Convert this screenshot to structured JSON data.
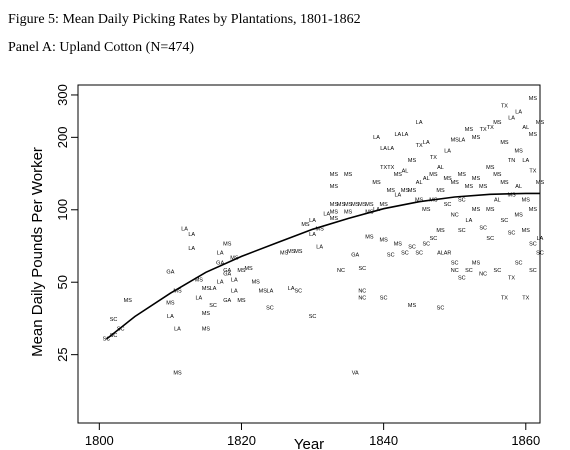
{
  "figure_title": "Figure 5: Mean Daily Picking Rates by Plantations, 1801-1862",
  "panel_title": "Panel A: Upland Cotton (N=474)",
  "chart_data": {
    "type": "scatter",
    "xlabel": "Year",
    "ylabel": "Mean Daily Pounds Per Worker",
    "x_scale": "linear",
    "y_scale": "log",
    "xlim": [
      1797,
      1862
    ],
    "ylim": [
      13,
      330
    ],
    "x_ticks": [
      1800,
      1820,
      1840,
      1860
    ],
    "x_tick_labels": [
      "1800",
      "1820",
      "1840",
      "1860"
    ],
    "y_ticks": [
      25,
      50,
      100,
      200,
      300
    ],
    "y_tick_labels": [
      "25",
      "50",
      "100",
      "200",
      "300"
    ],
    "grid": false,
    "series": [
      {
        "marker": "state label",
        "points": [
          {
            "x": 1801,
            "y": 29,
            "label": "SC"
          },
          {
            "x": 1802,
            "y": 30,
            "label": "SC"
          },
          {
            "x": 1802,
            "y": 35,
            "label": "SC"
          },
          {
            "x": 1803,
            "y": 32,
            "label": "SC"
          },
          {
            "x": 1804,
            "y": 42,
            "label": "MS"
          },
          {
            "x": 1810,
            "y": 55,
            "label": "GA"
          },
          {
            "x": 1810,
            "y": 41,
            "label": "MS"
          },
          {
            "x": 1810,
            "y": 36,
            "label": "LA"
          },
          {
            "x": 1811,
            "y": 46,
            "label": "MS"
          },
          {
            "x": 1811,
            "y": 32,
            "label": "LA"
          },
          {
            "x": 1811,
            "y": 21,
            "label": "MS"
          },
          {
            "x": 1812,
            "y": 83,
            "label": "LA"
          },
          {
            "x": 1813,
            "y": 79,
            "label": "LA"
          },
          {
            "x": 1813,
            "y": 69,
            "label": "LA"
          },
          {
            "x": 1814,
            "y": 43,
            "label": "LA"
          },
          {
            "x": 1814,
            "y": 51,
            "label": "MS"
          },
          {
            "x": 1815,
            "y": 47,
            "label": "MS"
          },
          {
            "x": 1815,
            "y": 37,
            "label": "MS"
          },
          {
            "x": 1815,
            "y": 32,
            "label": "MS"
          },
          {
            "x": 1816,
            "y": 40,
            "label": "SC"
          },
          {
            "x": 1816,
            "y": 47,
            "label": "LA"
          },
          {
            "x": 1817,
            "y": 50,
            "label": "LA"
          },
          {
            "x": 1817,
            "y": 66,
            "label": "LA"
          },
          {
            "x": 1817,
            "y": 60,
            "label": "GA"
          },
          {
            "x": 1818,
            "y": 56,
            "label": "GA"
          },
          {
            "x": 1818,
            "y": 72,
            "label": "MS"
          },
          {
            "x": 1818,
            "y": 54,
            "label": "GA"
          },
          {
            "x": 1818,
            "y": 42,
            "label": "GA"
          },
          {
            "x": 1819,
            "y": 51,
            "label": "LA"
          },
          {
            "x": 1819,
            "y": 46,
            "label": "LA"
          },
          {
            "x": 1819,
            "y": 63,
            "label": "MS"
          },
          {
            "x": 1820,
            "y": 56,
            "label": "MS"
          },
          {
            "x": 1820,
            "y": 42,
            "label": "MS"
          },
          {
            "x": 1821,
            "y": 57,
            "label": "MS"
          },
          {
            "x": 1822,
            "y": 50,
            "label": "MS"
          },
          {
            "x": 1823,
            "y": 46,
            "label": "MS"
          },
          {
            "x": 1824,
            "y": 46,
            "label": "LA"
          },
          {
            "x": 1824,
            "y": 39,
            "label": "SC"
          },
          {
            "x": 1826,
            "y": 66,
            "label": "MS"
          },
          {
            "x": 1827,
            "y": 47,
            "label": "LA"
          },
          {
            "x": 1827,
            "y": 67,
            "label": "MS"
          },
          {
            "x": 1828,
            "y": 67,
            "label": "MS"
          },
          {
            "x": 1828,
            "y": 46,
            "label": "SC"
          },
          {
            "x": 1829,
            "y": 87,
            "label": "MS"
          },
          {
            "x": 1830,
            "y": 36,
            "label": "SC"
          },
          {
            "x": 1830,
            "y": 90,
            "label": "LA"
          },
          {
            "x": 1830,
            "y": 79,
            "label": "LA"
          },
          {
            "x": 1831,
            "y": 70,
            "label": "LA"
          },
          {
            "x": 1831,
            "y": 83,
            "label": "MS"
          },
          {
            "x": 1832,
            "y": 96,
            "label": "LA"
          },
          {
            "x": 1833,
            "y": 140,
            "label": "MS"
          },
          {
            "x": 1833,
            "y": 125,
            "label": "MS"
          },
          {
            "x": 1833,
            "y": 105,
            "label": "MS"
          },
          {
            "x": 1833,
            "y": 98,
            "label": "MS"
          },
          {
            "x": 1833,
            "y": 92,
            "label": "MS"
          },
          {
            "x": 1834,
            "y": 105,
            "label": "MS"
          },
          {
            "x": 1834,
            "y": 56,
            "label": "NC"
          },
          {
            "x": 1835,
            "y": 140,
            "label": "MS"
          },
          {
            "x": 1835,
            "y": 105,
            "label": "MS"
          },
          {
            "x": 1835,
            "y": 98,
            "label": "MS"
          },
          {
            "x": 1836,
            "y": 65,
            "label": "GA"
          },
          {
            "x": 1836,
            "y": 105,
            "label": "MS"
          },
          {
            "x": 1836,
            "y": 21,
            "label": "VA"
          },
          {
            "x": 1837,
            "y": 105,
            "label": "MS"
          },
          {
            "x": 1837,
            "y": 46,
            "label": "NC"
          },
          {
            "x": 1837,
            "y": 43,
            "label": "NC"
          },
          {
            "x": 1837,
            "y": 57,
            "label": "SC"
          },
          {
            "x": 1838,
            "y": 105,
            "label": "MS"
          },
          {
            "x": 1838,
            "y": 98,
            "label": "MS"
          },
          {
            "x": 1838,
            "y": 77,
            "label": "MS"
          },
          {
            "x": 1839,
            "y": 100,
            "label": "LA"
          },
          {
            "x": 1839,
            "y": 130,
            "label": "MS"
          },
          {
            "x": 1839,
            "y": 200,
            "label": "LA"
          },
          {
            "x": 1840,
            "y": 180,
            "label": "LA"
          },
          {
            "x": 1840,
            "y": 150,
            "label": "TX"
          },
          {
            "x": 1840,
            "y": 105,
            "label": "MS"
          },
          {
            "x": 1840,
            "y": 75,
            "label": "MS"
          },
          {
            "x": 1840,
            "y": 43,
            "label": "SC"
          },
          {
            "x": 1841,
            "y": 180,
            "label": "LA"
          },
          {
            "x": 1841,
            "y": 150,
            "label": "TX"
          },
          {
            "x": 1841,
            "y": 120,
            "label": "MS"
          },
          {
            "x": 1841,
            "y": 65,
            "label": "SC"
          },
          {
            "x": 1842,
            "y": 205,
            "label": "LA"
          },
          {
            "x": 1842,
            "y": 140,
            "label": "MS"
          },
          {
            "x": 1842,
            "y": 115,
            "label": "LA"
          },
          {
            "x": 1842,
            "y": 72,
            "label": "MS"
          },
          {
            "x": 1843,
            "y": 205,
            "label": "LA"
          },
          {
            "x": 1843,
            "y": 145,
            "label": "AL"
          },
          {
            "x": 1843,
            "y": 120,
            "label": "MS"
          },
          {
            "x": 1843,
            "y": 66,
            "label": "SC"
          },
          {
            "x": 1844,
            "y": 160,
            "label": "MS"
          },
          {
            "x": 1844,
            "y": 120,
            "label": "MS"
          },
          {
            "x": 1844,
            "y": 70,
            "label": "SC"
          },
          {
            "x": 1844,
            "y": 40,
            "label": "MS"
          },
          {
            "x": 1845,
            "y": 230,
            "label": "LA"
          },
          {
            "x": 1845,
            "y": 185,
            "label": "TX"
          },
          {
            "x": 1845,
            "y": 130,
            "label": "AL"
          },
          {
            "x": 1845,
            "y": 110,
            "label": "MS"
          },
          {
            "x": 1845,
            "y": 66,
            "label": "SC"
          },
          {
            "x": 1846,
            "y": 190,
            "label": "LA"
          },
          {
            "x": 1846,
            "y": 135,
            "label": "AL"
          },
          {
            "x": 1846,
            "y": 100,
            "label": "MS"
          },
          {
            "x": 1846,
            "y": 72,
            "label": "SC"
          },
          {
            "x": 1847,
            "y": 165,
            "label": "TX"
          },
          {
            "x": 1847,
            "y": 140,
            "label": "MS"
          },
          {
            "x": 1847,
            "y": 110,
            "label": "MS"
          },
          {
            "x": 1847,
            "y": 76,
            "label": "SC"
          },
          {
            "x": 1848,
            "y": 150,
            "label": "AL"
          },
          {
            "x": 1848,
            "y": 120,
            "label": "MS"
          },
          {
            "x": 1848,
            "y": 82,
            "label": "MS"
          },
          {
            "x": 1848,
            "y": 66,
            "label": "AL"
          },
          {
            "x": 1848,
            "y": 39,
            "label": "SC"
          },
          {
            "x": 1849,
            "y": 175,
            "label": "LA"
          },
          {
            "x": 1849,
            "y": 135,
            "label": "MS"
          },
          {
            "x": 1849,
            "y": 105,
            "label": "SC"
          },
          {
            "x": 1849,
            "y": 66,
            "label": "AR"
          },
          {
            "x": 1850,
            "y": 195,
            "label": "MS"
          },
          {
            "x": 1850,
            "y": 130,
            "label": "MS"
          },
          {
            "x": 1850,
            "y": 95,
            "label": "NC"
          },
          {
            "x": 1850,
            "y": 60,
            "label": "SC"
          },
          {
            "x": 1850,
            "y": 56,
            "label": "NC"
          },
          {
            "x": 1851,
            "y": 195,
            "label": "LA"
          },
          {
            "x": 1851,
            "y": 140,
            "label": "MS"
          },
          {
            "x": 1851,
            "y": 110,
            "label": "SC"
          },
          {
            "x": 1851,
            "y": 82,
            "label": "SC"
          },
          {
            "x": 1851,
            "y": 52,
            "label": "SC"
          },
          {
            "x": 1852,
            "y": 215,
            "label": "MS"
          },
          {
            "x": 1852,
            "y": 125,
            "label": "MS"
          },
          {
            "x": 1852,
            "y": 90,
            "label": "LA"
          },
          {
            "x": 1852,
            "y": 56,
            "label": "SC"
          },
          {
            "x": 1853,
            "y": 200,
            "label": "MS"
          },
          {
            "x": 1853,
            "y": 135,
            "label": "MS"
          },
          {
            "x": 1853,
            "y": 100,
            "label": "MS"
          },
          {
            "x": 1853,
            "y": 60,
            "label": "MS"
          },
          {
            "x": 1854,
            "y": 215,
            "label": "TX"
          },
          {
            "x": 1854,
            "y": 125,
            "label": "MS"
          },
          {
            "x": 1854,
            "y": 84,
            "label": "SC"
          },
          {
            "x": 1854,
            "y": 54,
            "label": "NC"
          },
          {
            "x": 1855,
            "y": 220,
            "label": "TX"
          },
          {
            "x": 1855,
            "y": 150,
            "label": "MS"
          },
          {
            "x": 1855,
            "y": 100,
            "label": "MS"
          },
          {
            "x": 1855,
            "y": 76,
            "label": "SC"
          },
          {
            "x": 1856,
            "y": 230,
            "label": "MS"
          },
          {
            "x": 1856,
            "y": 140,
            "label": "MS"
          },
          {
            "x": 1856,
            "y": 110,
            "label": "AL"
          },
          {
            "x": 1856,
            "y": 56,
            "label": "SC"
          },
          {
            "x": 1857,
            "y": 270,
            "label": "TX"
          },
          {
            "x": 1857,
            "y": 190,
            "label": "MS"
          },
          {
            "x": 1857,
            "y": 130,
            "label": "MS"
          },
          {
            "x": 1857,
            "y": 90,
            "label": "SC"
          },
          {
            "x": 1857,
            "y": 43,
            "label": "TX"
          },
          {
            "x": 1858,
            "y": 240,
            "label": "LA"
          },
          {
            "x": 1858,
            "y": 160,
            "label": "TN"
          },
          {
            "x": 1858,
            "y": 115,
            "label": "MS"
          },
          {
            "x": 1858,
            "y": 80,
            "label": "SC"
          },
          {
            "x": 1858,
            "y": 52,
            "label": "TX"
          },
          {
            "x": 1859,
            "y": 255,
            "label": "LA"
          },
          {
            "x": 1859,
            "y": 175,
            "label": "MS"
          },
          {
            "x": 1859,
            "y": 125,
            "label": "AL"
          },
          {
            "x": 1859,
            "y": 95,
            "label": "MS"
          },
          {
            "x": 1859,
            "y": 60,
            "label": "SC"
          },
          {
            "x": 1860,
            "y": 220,
            "label": "AL"
          },
          {
            "x": 1860,
            "y": 160,
            "label": "LA"
          },
          {
            "x": 1860,
            "y": 110,
            "label": "MS"
          },
          {
            "x": 1860,
            "y": 82,
            "label": "MS"
          },
          {
            "x": 1860,
            "y": 43,
            "label": "TX"
          },
          {
            "x": 1861,
            "y": 290,
            "label": "MS"
          },
          {
            "x": 1861,
            "y": 205,
            "label": "MS"
          },
          {
            "x": 1861,
            "y": 145,
            "label": "TX"
          },
          {
            "x": 1861,
            "y": 100,
            "label": "MS"
          },
          {
            "x": 1861,
            "y": 72,
            "label": "SC"
          },
          {
            "x": 1861,
            "y": 56,
            "label": "SC"
          },
          {
            "x": 1862,
            "y": 230,
            "label": "MS"
          },
          {
            "x": 1862,
            "y": 130,
            "label": "MS"
          },
          {
            "x": 1862,
            "y": 76,
            "label": "LA"
          },
          {
            "x": 1862,
            "y": 66,
            "label": "SC"
          }
        ]
      },
      {
        "marker": "line",
        "x": [
          1801,
          1805,
          1810,
          1815,
          1820,
          1825,
          1830,
          1835,
          1840,
          1845,
          1850,
          1855,
          1860,
          1862
        ],
        "y": [
          29,
          36,
          45,
          55,
          64,
          73,
          83,
          92,
          101,
          108,
          113,
          116,
          117,
          117
        ]
      }
    ]
  }
}
